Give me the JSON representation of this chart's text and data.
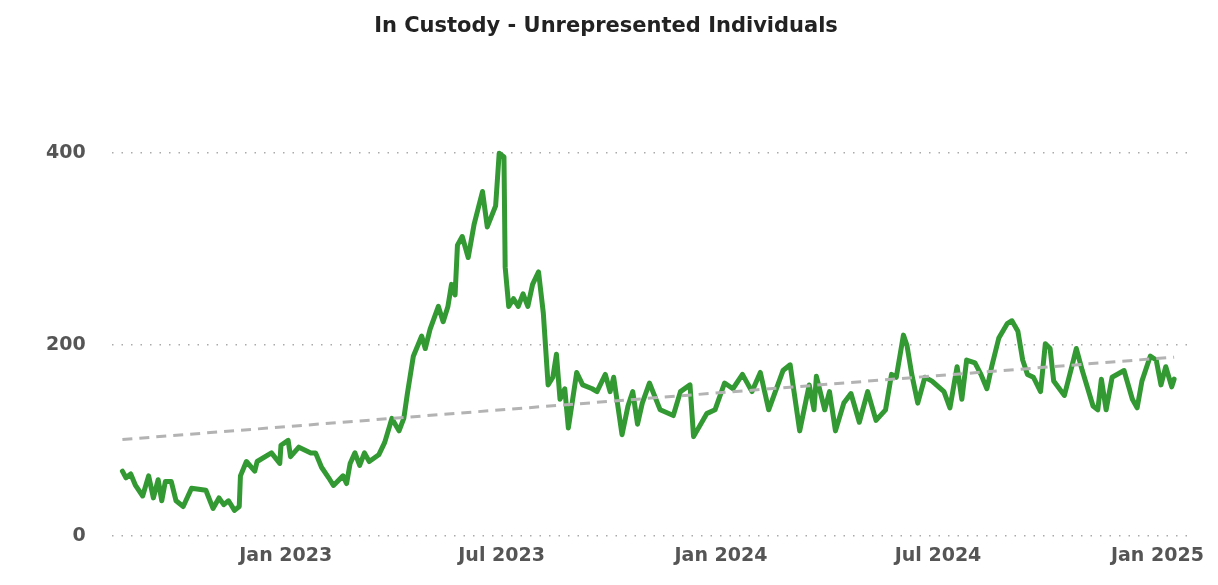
{
  "chart_data": {
    "type": "line",
    "title": "In Custody - Unrepresented Individuals",
    "xlim": [
      "2022-08-08",
      "2025-01-30"
    ],
    "xticks": [
      {
        "value": "2023-01",
        "label": "Jan 2023"
      },
      {
        "value": "2023-07",
        "label": "Jul 2023"
      },
      {
        "value": "2024-01",
        "label": "Jan 2024"
      },
      {
        "value": "2024-07",
        "label": "Jul 2024"
      },
      {
        "value": "2025-01",
        "label": "Jan 2025"
      }
    ],
    "ylim": [
      0,
      400
    ],
    "yticks": [
      0,
      200,
      400
    ],
    "grid": "y",
    "series": [
      {
        "color": "#339933",
        "x": [
          "2022-08-17",
          "2022-08-20",
          "2022-08-24",
          "2022-08-28",
          "2022-09-03",
          "2022-09-08",
          "2022-09-12",
          "2022-09-16",
          "2022-09-19",
          "2022-09-22",
          "2022-09-27",
          "2022-10-01",
          "2022-10-07",
          "2022-10-14",
          "2022-10-26",
          "2022-11-01",
          "2022-11-06",
          "2022-11-10",
          "2022-11-14",
          "2022-11-19",
          "2022-11-23",
          "2022-11-24",
          "2022-11-29",
          "2022-12-06",
          "2022-12-08",
          "2022-12-20",
          "2022-12-27",
          "2022-12-28",
          "2023-01-03",
          "2023-01-05",
          "2023-01-12",
          "2023-01-22",
          "2023-01-26",
          "2023-01-31",
          "2023-02-06",
          "2023-02-10",
          "2023-02-18",
          "2023-02-21",
          "2023-02-24",
          "2023-02-28",
          "2023-03-04",
          "2023-03-08",
          "2023-03-12",
          "2023-03-20",
          "2023-03-25",
          "2023-03-31",
          "2023-04-06",
          "2023-04-10",
          "2023-04-13",
          "2023-04-18",
          "2023-04-25",
          "2023-04-28",
          "2023-05-02",
          "2023-05-09",
          "2023-05-13",
          "2023-05-17",
          "2023-05-20",
          "2023-05-23",
          "2023-05-25",
          "2023-05-29",
          "2023-06-03",
          "2023-06-08",
          "2023-06-15",
          "2023-06-19",
          "2023-06-26",
          "2023-06-29",
          "2023-07-03",
          "2023-07-04",
          "2023-07-07",
          "2023-07-11",
          "2023-07-15",
          "2023-07-19",
          "2023-07-23",
          "2023-07-27",
          "2023-08-01",
          "2023-08-05",
          "2023-08-09",
          "2023-08-13",
          "2023-08-16",
          "2023-08-19",
          "2023-08-23",
          "2023-08-26",
          "2023-09-02",
          "2023-09-07",
          "2023-09-15",
          "2023-09-19",
          "2023-09-26",
          "2023-09-30",
          "2023-10-03",
          "2023-10-10",
          "2023-10-15",
          "2023-10-19",
          "2023-10-23",
          "2023-10-27",
          "2023-11-02",
          "2023-11-11",
          "2023-11-22",
          "2023-11-28",
          "2023-12-06",
          "2023-12-09",
          "2023-12-20",
          "2023-12-27",
          "2024-01-04",
          "2024-01-11",
          "2024-01-19",
          "2024-01-27",
          "2024-02-03",
          "2024-02-10",
          "2024-02-22",
          "2024-02-28",
          "2024-03-07",
          "2024-03-15",
          "2024-03-19",
          "2024-03-21",
          "2024-03-28",
          "2024-04-01",
          "2024-04-06",
          "2024-04-13",
          "2024-04-19",
          "2024-04-26",
          "2024-05-03",
          "2024-05-10",
          "2024-05-18",
          "2024-05-23",
          "2024-05-27",
          "2024-06-02",
          "2024-06-05",
          "2024-06-09",
          "2024-06-14",
          "2024-06-20",
          "2024-06-26",
          "2024-07-06",
          "2024-07-11",
          "2024-07-17",
          "2024-07-21",
          "2024-07-25",
          "2024-08-01",
          "2024-08-06",
          "2024-08-11",
          "2024-08-15",
          "2024-08-21",
          "2024-08-28",
          "2024-09-01",
          "2024-09-06",
          "2024-09-10",
          "2024-09-14",
          "2024-09-19",
          "2024-09-25",
          "2024-09-29",
          "2024-10-03",
          "2024-10-06",
          "2024-10-15",
          "2024-10-22",
          "2024-10-25",
          "2024-10-30",
          "2024-11-08",
          "2024-11-12",
          "2024-11-15",
          "2024-11-19",
          "2024-11-24",
          "2024-12-04",
          "2024-12-11",
          "2024-12-15",
          "2024-12-19",
          "2024-12-26",
          "2024-12-31",
          "2025-01-04",
          "2025-01-08",
          "2025-01-13",
          "2025-01-15"
        ],
        "values": [
          68,
          61,
          65,
          53,
          42,
          63,
          40,
          59,
          37,
          57,
          57,
          37,
          31,
          50,
          48,
          29,
          40,
          33,
          37,
          27,
          31,
          63,
          78,
          68,
          78,
          87,
          76,
          95,
          100,
          83,
          93,
          87,
          87,
          72,
          61,
          53,
          63,
          55,
          76,
          87,
          74,
          87,
          78,
          85,
          98,
          123,
          110,
          123,
          149,
          188,
          209,
          196,
          216,
          240,
          224,
          240,
          263,
          252,
          304,
          313,
          291,
          326,
          360,
          323,
          345,
          400,
          396,
          281,
          240,
          248,
          240,
          253,
          240,
          263,
          276,
          233,
          158,
          166,
          190,
          143,
          154,
          113,
          171,
          158,
          154,
          151,
          169,
          151,
          166,
          106,
          136,
          151,
          117,
          139,
          160,
          132,
          126,
          151,
          158,
          104,
          128,
          132,
          160,
          154,
          169,
          151,
          171,
          132,
          173,
          179,
          110,
          158,
          132,
          167,
          132,
          151,
          110,
          139,
          149,
          119,
          151,
          121,
          132,
          169,
          166,
          210,
          199,
          169,
          139,
          166,
          162,
          151,
          134,
          177,
          143,
          184,
          181,
          169,
          154,
          177,
          207,
          222,
          225,
          214,
          184,
          169,
          166,
          151,
          201,
          196,
          162,
          147,
          181,
          196,
          173,
          136,
          132,
          164,
          132,
          166,
          173,
          143,
          134,
          162,
          188,
          184,
          158,
          177,
          156,
          164
        ]
      },
      {
        "type": "line",
        "color": "#b3b3b3",
        "line_style": "dashed",
        "x": [
          "2022-08-17",
          "2025-01-15"
        ],
        "values": [
          101,
          187
        ]
      }
    ]
  }
}
